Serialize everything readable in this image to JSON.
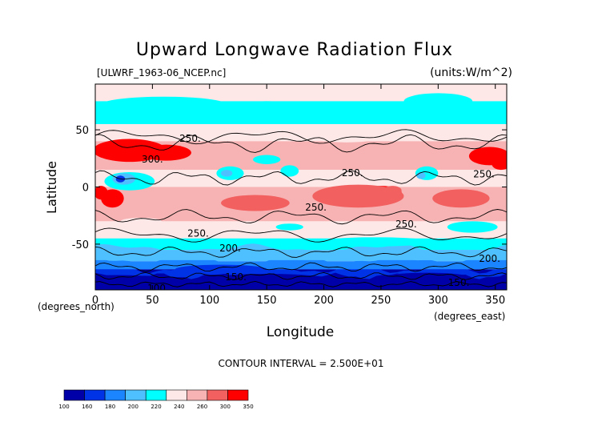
{
  "chart_data": {
    "type": "heatmap",
    "title": "Upward Longwave Radiation Flux",
    "file_label": "[ULWRF_1963-06_NCEP.nc]",
    "units_label": "(units:W/m^2)",
    "xlabel": "Longitude",
    "ylabel": "Latitude",
    "x_unit_note": "(degrees_east)",
    "y_unit_note": "(degrees_north)",
    "contour_note": "CONTOUR INTERVAL = 2.500E+01",
    "xlim": [
      0,
      360
    ],
    "ylim": [
      -90,
      90
    ],
    "x_ticks": [
      0,
      50,
      100,
      150,
      200,
      250,
      300,
      350
    ],
    "y_ticks": [
      -50,
      0,
      50
    ],
    "contour_labels": [
      {
        "text": "250.",
        "lon": 83,
        "lat": 43
      },
      {
        "text": "300.",
        "lon": 50,
        "lat": 25
      },
      {
        "text": "250.",
        "lon": 225,
        "lat": 13
      },
      {
        "text": "250.",
        "lon": 193,
        "lat": -17
      },
      {
        "text": "250.",
        "lon": 272,
        "lat": -32
      },
      {
        "text": "250.",
        "lon": 340,
        "lat": 12
      },
      {
        "text": "250.",
        "lon": 90,
        "lat": -40
      },
      {
        "text": "200.",
        "lon": 118,
        "lat": -53
      },
      {
        "text": "200.",
        "lon": 345,
        "lat": -62
      },
      {
        "text": "150.",
        "lon": 123,
        "lat": -78
      },
      {
        "text": "150.",
        "lon": 318,
        "lat": -83
      },
      {
        "text": "100.",
        "lon": 55,
        "lat": -88
      }
    ],
    "colorbar": {
      "levels": [
        "100",
        "160",
        "180",
        "200",
        "220",
        "240",
        "260",
        "300",
        "350"
      ],
      "colors": [
        "#0000a8",
        "#0033e6",
        "#1a85ff",
        "#4fc0ff",
        "#00ffff",
        "#fde7e7",
        "#f7b3b3",
        "#f26060",
        "#ff0000"
      ]
    },
    "field": [
      {
        "lat_range": [
          75,
          90
        ],
        "level": "240-260",
        "note": "mixed with 220-240 near 60-110E and 280-320E"
      },
      {
        "lat_range": [
          55,
          75
        ],
        "level": "220-240"
      },
      {
        "lat_range": [
          45,
          55
        ],
        "level": "240-260"
      },
      {
        "lat_range": [
          15,
          40
        ],
        "level": "260-300",
        "note": "300+ near 0-90E and 330-360E"
      },
      {
        "lat_range": [
          0,
          15
        ],
        "level": "240-260",
        "note": "cool pockets 220-240 near 10-60E and 110-130E"
      },
      {
        "lat_range": [
          -30,
          0
        ],
        "level": "260-300",
        "note": "300+ near 240-270E"
      },
      {
        "lat_range": [
          -45,
          -30
        ],
        "level": "240-260"
      },
      {
        "lat_range": [
          -55,
          -45
        ],
        "level": "220-240"
      },
      {
        "lat_range": [
          -65,
          -55
        ],
        "level": "200-220"
      },
      {
        "lat_range": [
          -72,
          -65
        ],
        "level": "180-200"
      },
      {
        "lat_range": [
          -90,
          -72
        ],
        "level": "100-160"
      }
    ]
  }
}
